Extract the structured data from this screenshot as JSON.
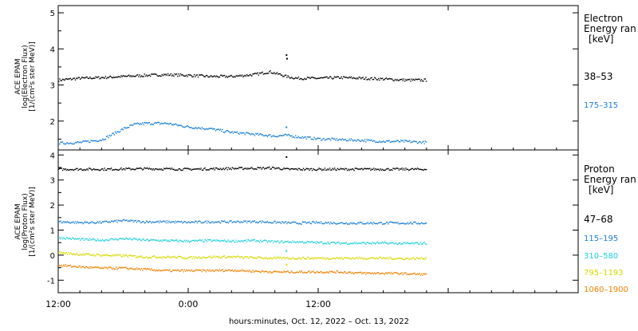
{
  "chart_data": [
    {
      "type": "scatter",
      "panel": "electron",
      "ylabel_lines": [
        "ACE EPAM",
        "log(Electron Flux)",
        "[1/(cm²s ster MeV)]"
      ],
      "ylim": [
        1.2,
        5.2
      ],
      "yticks": [
        2,
        3,
        4,
        5
      ],
      "xlim_hours": [
        0,
        48
      ],
      "legend_title": [
        "Electron",
        "Energy ran",
        "[keV]"
      ],
      "series": [
        {
          "name": "38–53",
          "color": "#000000",
          "x": [
            0,
            2,
            4,
            6,
            8,
            10,
            12,
            14,
            16,
            18,
            19.5,
            20.5,
            21,
            22,
            24,
            26,
            28,
            30,
            32,
            34
          ],
          "y": [
            3.15,
            3.2,
            3.22,
            3.25,
            3.28,
            3.3,
            3.28,
            3.25,
            3.25,
            3.3,
            3.38,
            3.3,
            3.25,
            3.2,
            3.2,
            3.22,
            3.2,
            3.18,
            3.15,
            3.15
          ]
        },
        {
          "name": "175–315",
          "color": "#1a7fd6",
          "x": [
            0,
            2,
            4,
            6,
            7,
            8,
            10,
            12,
            14,
            16,
            18,
            20,
            21,
            22,
            24,
            26,
            28,
            30,
            32,
            34
          ],
          "y": [
            1.4,
            1.42,
            1.5,
            1.8,
            1.92,
            1.95,
            1.95,
            1.85,
            1.8,
            1.7,
            1.65,
            1.6,
            1.62,
            1.58,
            1.52,
            1.5,
            1.48,
            1.45,
            1.45,
            1.42
          ]
        }
      ],
      "outliers": [
        {
          "series": 0,
          "x": 21,
          "y": 3.85
        },
        {
          "series": 0,
          "x": 21.05,
          "y": 3.75
        },
        {
          "series": 1,
          "x": 21,
          "y": 1.85
        }
      ]
    },
    {
      "type": "scatter",
      "panel": "proton",
      "ylabel_lines": [
        "ACE EPAM",
        "log(Proton Flux)",
        "[1/(cm²s ster MeV)]"
      ],
      "ylim": [
        -1.5,
        4.2
      ],
      "yticks": [
        -1,
        0,
        1,
        2,
        3,
        4
      ],
      "xlim_hours": [
        0,
        48
      ],
      "xticks_hours": [
        0,
        12,
        24
      ],
      "xtick_labels": [
        "12:00",
        "0:00",
        "12:00"
      ],
      "xlabel": "hours:minutes, Oct. 12, 2022 – Oct. 13, 2022",
      "legend_title": [
        "Proton",
        "Energy ran",
        "[keV]"
      ],
      "series": [
        {
          "name": "47–68",
          "color": "#000000",
          "x": [
            0,
            4,
            8,
            12,
            16,
            20,
            21,
            22,
            26,
            30,
            34
          ],
          "y": [
            3.45,
            3.45,
            3.47,
            3.45,
            3.48,
            3.5,
            3.45,
            3.45,
            3.45,
            3.45,
            3.45
          ]
        },
        {
          "name": "115–195",
          "color": "#1a7fd6",
          "x": [
            0,
            2,
            4,
            6,
            8,
            10,
            12,
            14,
            16,
            18,
            20,
            22,
            24,
            26,
            28,
            30,
            32,
            34
          ],
          "y": [
            1.35,
            1.32,
            1.33,
            1.4,
            1.35,
            1.35,
            1.33,
            1.35,
            1.35,
            1.36,
            1.33,
            1.3,
            1.32,
            1.3,
            1.3,
            1.3,
            1.3,
            1.3
          ]
        },
        {
          "name": "310–580",
          "color": "#20d0d8",
          "x": [
            0,
            2,
            4,
            6,
            8,
            10,
            12,
            14,
            16,
            18,
            20,
            22,
            24,
            26,
            28,
            30,
            32,
            34
          ],
          "y": [
            0.72,
            0.65,
            0.62,
            0.68,
            0.62,
            0.6,
            0.58,
            0.6,
            0.58,
            0.6,
            0.55,
            0.55,
            0.52,
            0.5,
            0.5,
            0.5,
            0.48,
            0.5
          ]
        },
        {
          "name": "795–1193",
          "color": "#d8d800",
          "x": [
            0,
            2,
            4,
            6,
            8,
            10,
            12,
            14,
            16,
            18,
            20,
            22,
            24,
            26,
            28,
            30,
            32,
            34
          ],
          "y": [
            0.12,
            0.05,
            0.02,
            0.0,
            -0.05,
            -0.05,
            -0.08,
            -0.05,
            -0.05,
            -0.08,
            -0.1,
            -0.1,
            -0.1,
            -0.1,
            -0.1,
            -0.1,
            -0.12,
            -0.1
          ]
        },
        {
          "name": "1060–1900",
          "color": "#f08000",
          "x": [
            0,
            2,
            4,
            6,
            8,
            10,
            12,
            14,
            16,
            18,
            20,
            22,
            24,
            26,
            28,
            30,
            32,
            34
          ],
          "y": [
            -0.38,
            -0.45,
            -0.5,
            -0.5,
            -0.55,
            -0.6,
            -0.6,
            -0.6,
            -0.58,
            -0.62,
            -0.65,
            -0.65,
            -0.65,
            -0.65,
            -0.7,
            -0.7,
            -0.72,
            -0.75
          ]
        }
      ],
      "outliers": [
        {
          "series": 0,
          "x": 21,
          "y": 3.95
        },
        {
          "series": 2,
          "x": 21,
          "y": 0.2
        },
        {
          "series": 3,
          "x": 21,
          "y": -0.35
        }
      ]
    }
  ]
}
